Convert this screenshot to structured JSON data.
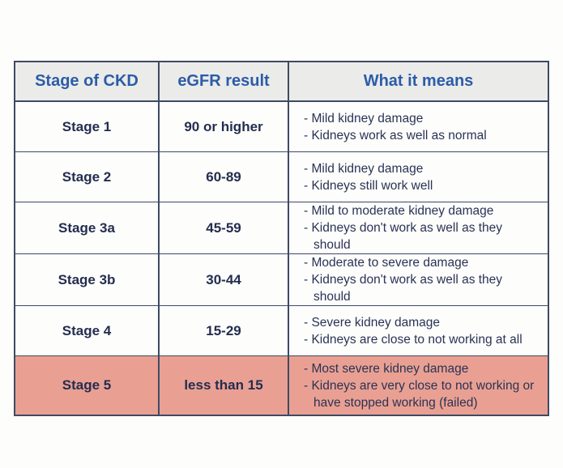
{
  "table": {
    "headers": [
      "Stage of CKD",
      "eGFR result",
      "What it means"
    ],
    "rows": [
      {
        "stage": "Stage 1",
        "egfr": "90 or higher",
        "meaning": [
          "Mild kidney damage",
          "Kidneys work as well as normal"
        ]
      },
      {
        "stage": "Stage 2",
        "egfr": "60-89",
        "meaning": [
          "Mild kidney damage",
          "Kidneys still work well"
        ]
      },
      {
        "stage": "Stage 3a",
        "egfr": "45-59",
        "meaning": [
          "Mild to moderate kidney damage",
          "Kidneys don't work as well as they should"
        ]
      },
      {
        "stage": "Stage 3b",
        "egfr": "30-44",
        "meaning": [
          "Moderate to severe damage",
          "Kidneys don't work as well as they should"
        ]
      },
      {
        "stage": "Stage 4",
        "egfr": "15-29",
        "meaning": [
          "Severe kidney damage",
          "Kidneys are close to not working at all"
        ]
      },
      {
        "stage": "Stage 5",
        "egfr": "less than 15",
        "meaning": [
          "Most severe kidney damage",
          "Kidneys are very close to not working or have stopped working (failed)"
        ]
      }
    ],
    "colors": {
      "header_text": "#2b5ca8",
      "header_background": "#ebebe9",
      "body_text": "#242d4f",
      "border": "#3e4a63",
      "highlight_row_background": "#e9a093"
    }
  }
}
